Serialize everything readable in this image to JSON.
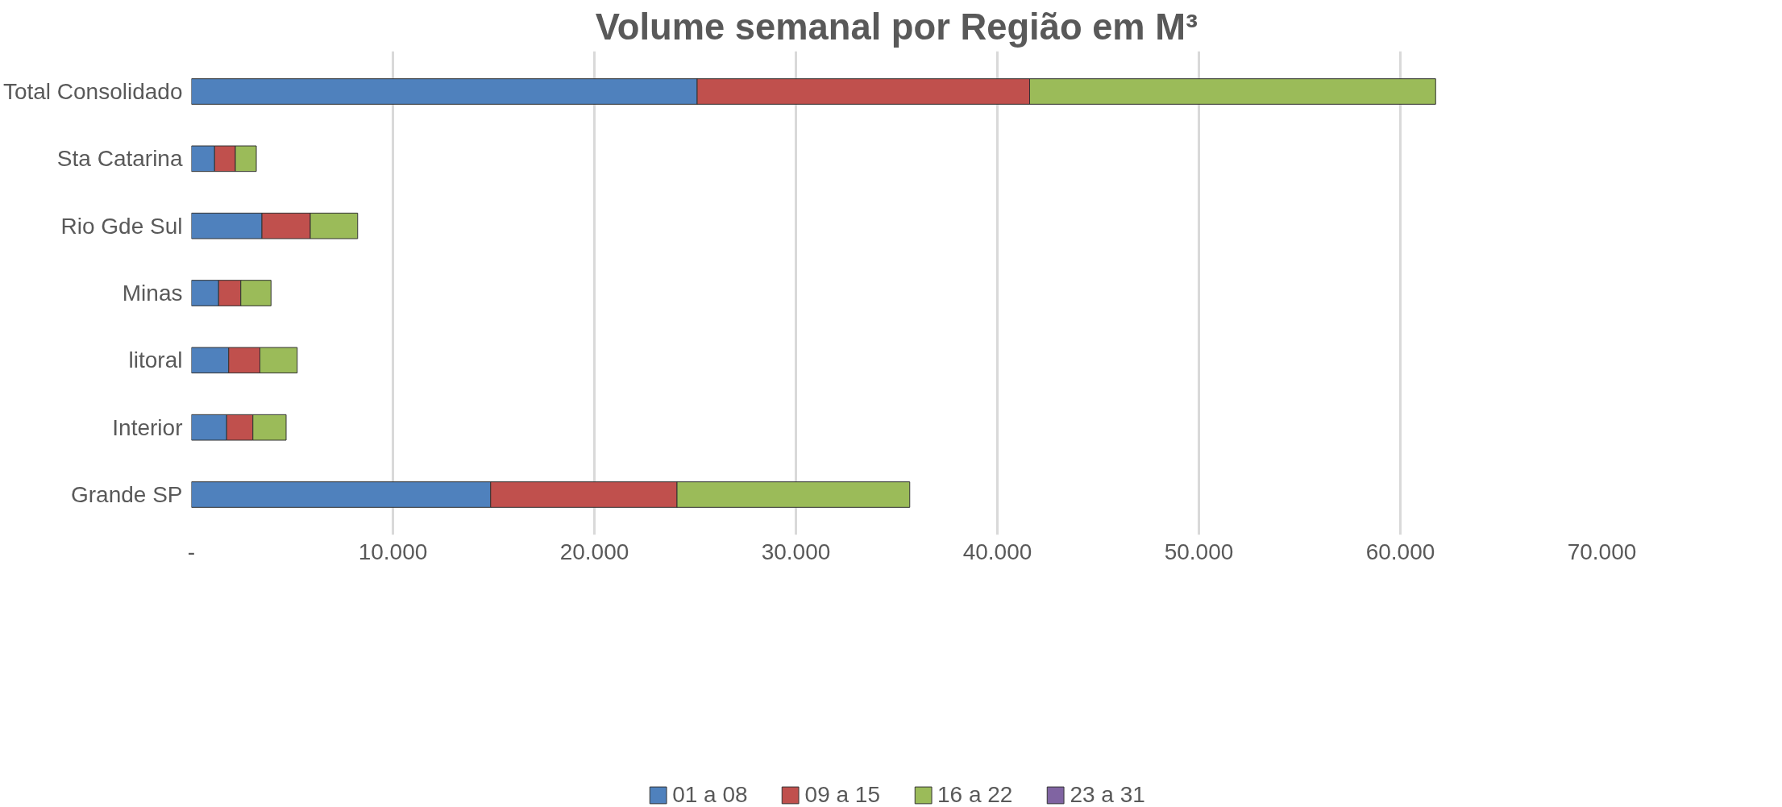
{
  "chart_data": {
    "type": "bar",
    "orientation": "horizontal",
    "stacked": true,
    "title": "Volume semanal por Região em M³",
    "categories": [
      "Total Consolidado",
      "Sta Catarina",
      "Rio Gde Sul",
      "Minas",
      "litoral",
      "Interior",
      "Grande SP"
    ],
    "series": [
      {
        "name": "01 a 08",
        "color": "#4f81bd",
        "values": [
          25100,
          1150,
          3500,
          1350,
          1850,
          1750,
          14850
        ]
      },
      {
        "name": "09 a 15",
        "color": "#c0504d",
        "values": [
          16500,
          1030,
          2400,
          1100,
          1550,
          1300,
          9250
        ]
      },
      {
        "name": "16 a 22",
        "color": "#9bbb59",
        "values": [
          20150,
          1040,
          2350,
          1500,
          1850,
          1650,
          11550
        ]
      },
      {
        "name": "23 a 31",
        "color": "#8064a2",
        "values": [
          null,
          null,
          null,
          null,
          null,
          null,
          null
        ]
      }
    ],
    "xlim": [
      0,
      70000
    ],
    "xticks": [
      {
        "value": 0,
        "label": "-"
      },
      {
        "value": 10000,
        "label": "10.000"
      },
      {
        "value": 20000,
        "label": "20.000"
      },
      {
        "value": 30000,
        "label": "30.000"
      },
      {
        "value": 40000,
        "label": "40.000"
      },
      {
        "value": 50000,
        "label": "50.000"
      },
      {
        "value": 60000,
        "label": "60.000"
      },
      {
        "value": 70000,
        "label": "70.000"
      }
    ],
    "grid": "x",
    "legend": "bottom"
  }
}
